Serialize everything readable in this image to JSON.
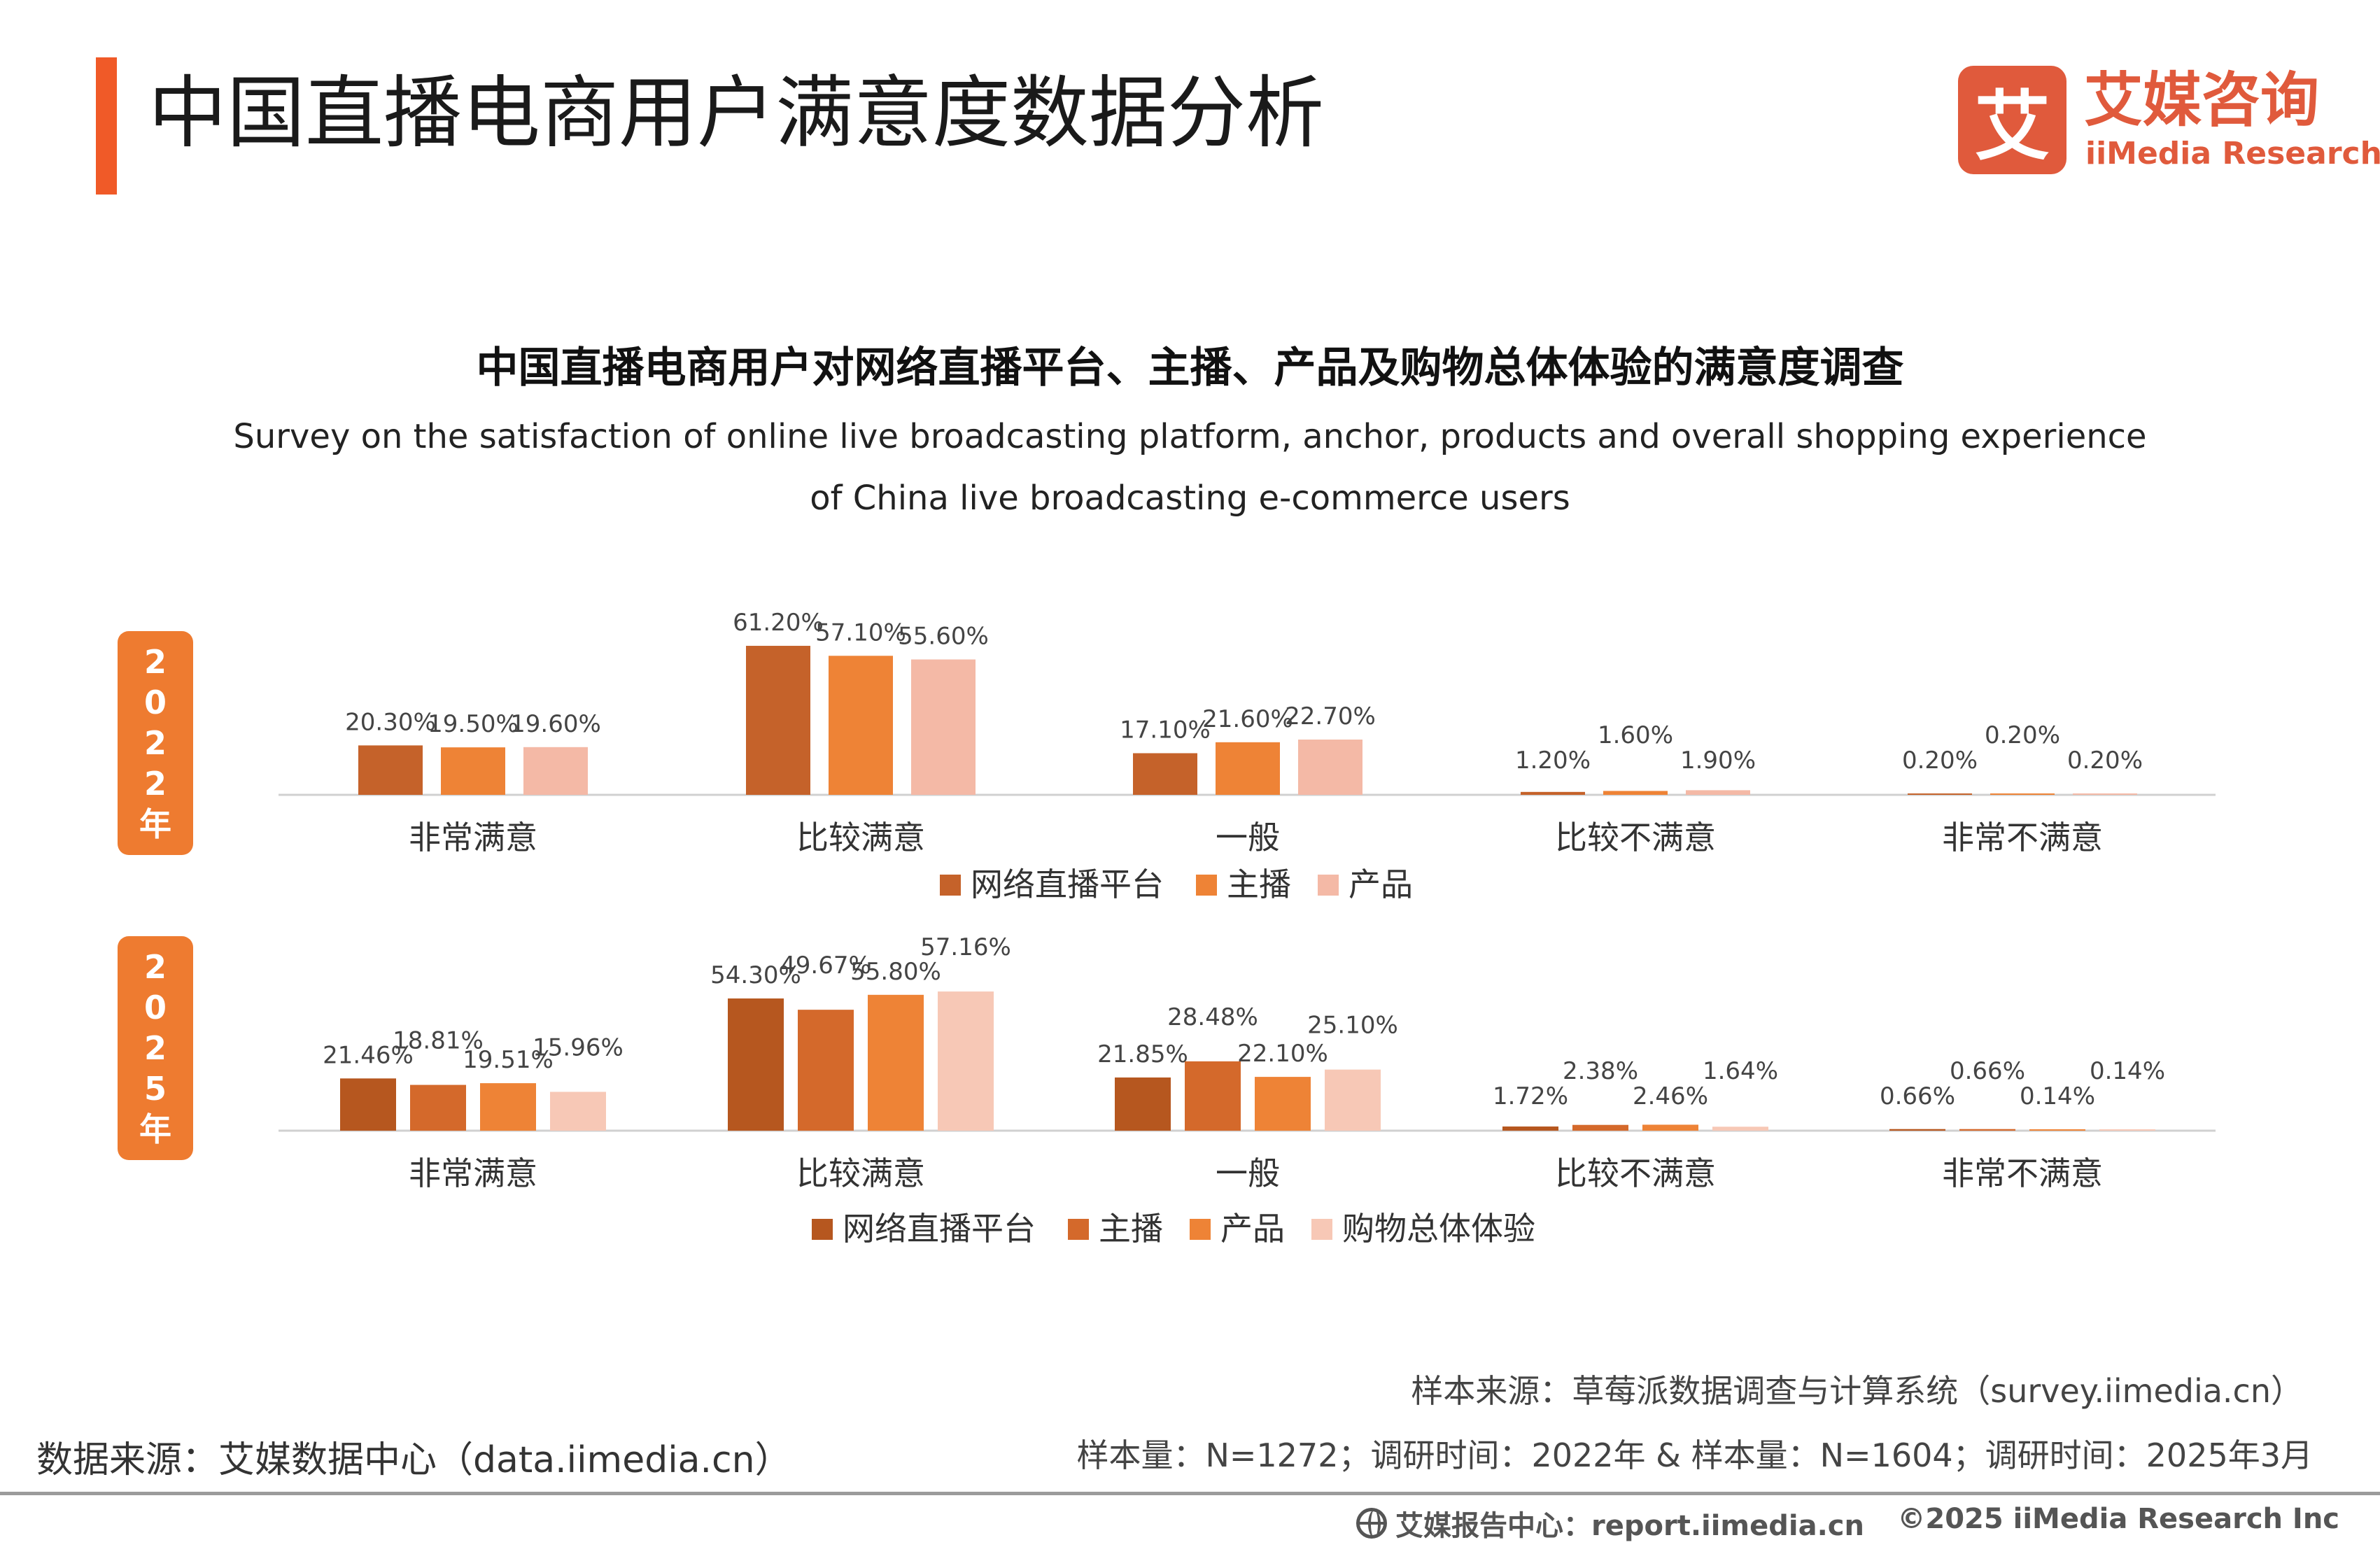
{
  "page": {
    "title": "中国直播电商用户满意度数据分析",
    "accent_color": "#f05a28"
  },
  "logo": {
    "mark": "艾",
    "cn": "艾媒咨询",
    "en": "iiMedia Research",
    "color": "#e05a3c"
  },
  "chart_title": {
    "cn": "中国直播电商用户对网络直播平台、主播、产品及购物总体体验的满意度调查",
    "en_line1": "Survey on the satisfaction of online live broadcasting platform, anchor, products and overall shopping experience",
    "en_line2": "of China live broadcasting e-commerce users"
  },
  "year_badges": {
    "y2022": [
      "2",
      "0",
      "2",
      "2",
      "年"
    ],
    "y2025": [
      "2",
      "0",
      "2",
      "5",
      "年"
    ],
    "color": "#ee7b30"
  },
  "chart_data": [
    {
      "type": "bar",
      "year_label": "2022年",
      "categories": [
        "非常满意",
        "比较满意",
        "一般",
        "比较不满意",
        "非常不满意"
      ],
      "series": [
        {
          "name": "网络直播平台",
          "color": "#c5622a",
          "values": [
            20.3,
            61.2,
            17.1,
            1.2,
            0.2
          ],
          "labels": [
            "20.30%",
            "61.20%",
            "17.10%",
            "1.20%",
            "0.20%"
          ]
        },
        {
          "name": "主播",
          "color": "#ee8336",
          "values": [
            19.5,
            57.1,
            21.6,
            1.6,
            0.2
          ],
          "labels": [
            "19.50%",
            "57.10%",
            "21.60%",
            "1.60%",
            "0.20%"
          ]
        },
        {
          "name": "产品",
          "color": "#f4b9a6",
          "values": [
            19.6,
            55.6,
            22.7,
            1.9,
            0.2
          ],
          "labels": [
            "19.60%",
            "55.60%",
            "22.70%",
            "1.90%",
            "0.20%"
          ]
        }
      ],
      "ylim": [
        0,
        70
      ],
      "unit": "%"
    },
    {
      "type": "bar",
      "year_label": "2025年",
      "categories": [
        "非常满意",
        "比较满意",
        "一般",
        "比较不满意",
        "非常不满意"
      ],
      "series": [
        {
          "name": "网络直播平台",
          "color": "#b6571f",
          "values": [
            21.46,
            54.3,
            21.85,
            1.72,
            0.66
          ],
          "labels": [
            "21.46%",
            "54.30%",
            "21.85%",
            "1.72%",
            "0.66%"
          ]
        },
        {
          "name": "主播",
          "color": "#d4692b",
          "values": [
            18.81,
            49.67,
            28.48,
            2.38,
            0.66
          ],
          "labels": [
            "18.81%",
            "49.67%",
            "28.48%",
            "2.38%",
            "0.66%"
          ]
        },
        {
          "name": "产品",
          "color": "#ee8336",
          "values": [
            19.51,
            55.8,
            22.1,
            2.46,
            0.14
          ],
          "labels": [
            "19.51%",
            "55.80%",
            "22.10%",
            "2.46%",
            "0.14%"
          ]
        },
        {
          "name": "购物总体体验",
          "color": "#f7c8b6",
          "values": [
            15.96,
            57.16,
            25.1,
            1.64,
            0.14
          ],
          "labels": [
            "15.96%",
            "57.16%",
            "25.10%",
            "1.64%",
            "0.14%"
          ]
        }
      ],
      "ylim": [
        0,
        70
      ],
      "unit": "%"
    }
  ],
  "footer": {
    "sample_source": "样本来源：草莓派数据调查与计算系统（survey.iimedia.cn）",
    "data_source": "数据来源：艾媒数据中心（data.iimedia.cn）",
    "sample_info": "样本量：N=1272；调研时间：2022年 & 样本量：N=1604；调研时间：2025年3月",
    "report_center": "艾媒报告中心：report.iimedia.cn",
    "copyright": "©2025  iiMedia Research  Inc"
  }
}
